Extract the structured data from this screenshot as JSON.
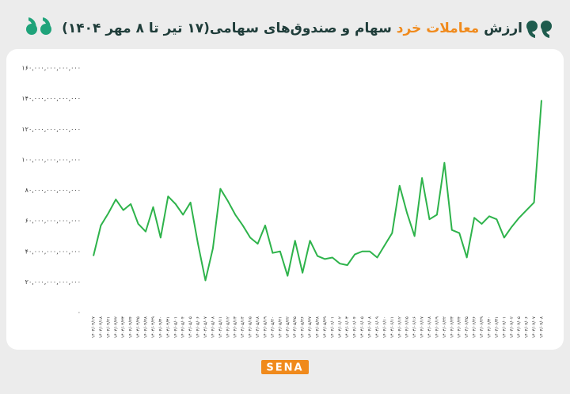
{
  "chart_data": {
    "type": "line",
    "title": [
      "ارزش",
      "معاملات خرد",
      "سهام و صندوق‌های سهامی(۱۷ تیر تا ۸ مهر ۱۴۰۴)"
    ],
    "brand": "SENA",
    "x": [
      "۱۴۰۴/۰۴/۱۷",
      "۱۴۰۴/۰۴/۱۸",
      "۱۴۰۴/۰۴/۲۱",
      "۱۴۰۴/۰۴/۲۲",
      "۱۴۰۴/۰۴/۲۳",
      "۱۴۰۴/۰۴/۲۴",
      "۱۴۰۴/۰۴/۲۵",
      "۱۴۰۴/۰۴/۲۸",
      "۱۴۰۴/۰۴/۲۹",
      "۱۴۰۴/۰۴/۳۰",
      "۱۴۰۴/۰۴/۳۱",
      "۱۴۰۴/۰۵/۰۱",
      "۱۴۰۴/۰۵/۰۴",
      "۱۴۰۴/۰۵/۰۵",
      "۱۴۰۴/۰۵/۰۶",
      "۱۴۰۴/۰۵/۰۷",
      "۱۴۰۴/۰۵/۰۸",
      "۱۴۰۴/۰۵/۱۱",
      "۱۴۰۴/۰۵/۱۲",
      "۱۴۰۴/۰۵/۱۳",
      "۱۴۰۴/۰۵/۱۴",
      "۱۴۰۴/۰۵/۱۵",
      "۱۴۰۴/۰۵/۱۸",
      "۱۴۰۴/۰۵/۱۹",
      "۱۴۰۴/۰۵/۲۰",
      "۱۴۰۴/۰۵/۲۱",
      "۱۴۰۴/۰۵/۲۲",
      "۱۴۰۴/۰۵/۲۵",
      "۱۴۰۴/۰۵/۲۶",
      "۱۴۰۴/۰۵/۲۷",
      "۱۴۰۴/۰۵/۲۸",
      "۱۴۰۴/۰۵/۲۹",
      "۱۴۰۴/۰۶/۰۱",
      "۱۴۰۴/۰۶/۰۲",
      "۱۴۰۴/۰۶/۰۳",
      "۱۴۰۴/۰۶/۰۴",
      "۱۴۰۴/۰۶/۰۵",
      "۱۴۰۴/۰۶/۰۸",
      "۱۴۰۴/۰۶/۰۹",
      "۱۴۰۴/۰۶/۱۰",
      "۱۴۰۴/۰۶/۱۱",
      "۱۴۰۴/۰۶/۱۲",
      "۱۴۰۴/۰۶/۱۵",
      "۱۴۰۴/۰۶/۱۶",
      "۱۴۰۴/۰۶/۱۷",
      "۱۴۰۴/۰۶/۱۸",
      "۱۴۰۴/۰۶/۱۹",
      "۱۴۰۴/۰۶/۲۲",
      "۱۴۰۴/۰۶/۲۳",
      "۱۴۰۴/۰۶/۲۴",
      "۱۴۰۴/۰۶/۲۵",
      "۱۴۰۴/۰۶/۲۶",
      "۱۴۰۴/۰۶/۲۹",
      "۱۴۰۴/۰۶/۳۰",
      "۱۴۰۴/۰۶/۳۱",
      "۱۴۰۴/۰۷/۰۱",
      "۱۴۰۴/۰۷/۰۲",
      "۱۴۰۴/۰۷/۰۵",
      "۱۴۰۴/۰۷/۰۶",
      "۱۴۰۴/۰۷/۰۷",
      "۱۴۰۴/۰۷/۰۸"
    ],
    "series": [
      {
        "color": "#2eb34b",
        "values": [
          37000000000000,
          57000000000000,
          65000000000000,
          74000000000000,
          67000000000000,
          71000000000000,
          58000000000000,
          53000000000000,
          69000000000000,
          49000000000000,
          76000000000000,
          71000000000000,
          64000000000000,
          72000000000000,
          45000000000000,
          21000000000000,
          42000000000000,
          81000000000000,
          73000000000000,
          64000000000000,
          57000000000000,
          49000000000000,
          45000000000000,
          57000000000000,
          39000000000000,
          40000000000000,
          24000000000000,
          47000000000000,
          26000000000000,
          47000000000000,
          37000000000000,
          35000000000000,
          36000000000000,
          32000000000000,
          31000000000000,
          38000000000000,
          40000000000000,
          40000000000000,
          36000000000000,
          44000000000000,
          52000000000000,
          83000000000000,
          65000000000000,
          50000000000000,
          88000000000000,
          61000000000000,
          64000000000000,
          98000000000000,
          54000000000000,
          52000000000000,
          36000000000000,
          62000000000000,
          58000000000000,
          63000000000000,
          61000000000000,
          49000000000000,
          56000000000000,
          62000000000000,
          67000000000000,
          72000000000000,
          139000000000000
        ]
      }
    ],
    "ylim": [
      0,
      160000000000000
    ],
    "yticks": [
      {
        "value": 0,
        "label": "۰"
      },
      {
        "value": 20000000000000,
        "label": "۲۰,۰۰۰,۰۰۰,۰۰۰,۰۰۰"
      },
      {
        "value": 40000000000000,
        "label": "۴۰,۰۰۰,۰۰۰,۰۰۰,۰۰۰"
      },
      {
        "value": 60000000000000,
        "label": "۶۰,۰۰۰,۰۰۰,۰۰۰,۰۰۰"
      },
      {
        "value": 80000000000000,
        "label": "۸۰,۰۰۰,۰۰۰,۰۰۰,۰۰۰"
      },
      {
        "value": 100000000000000,
        "label": "۱۰۰,۰۰۰,۰۰۰,۰۰۰,۰۰۰"
      },
      {
        "value": 120000000000000,
        "label": "۱۲۰,۰۰۰,۰۰۰,۰۰۰,۰۰۰"
      },
      {
        "value": 140000000000000,
        "label": "۱۴۰,۰۰۰,۰۰۰,۰۰۰,۰۰۰"
      },
      {
        "value": 160000000000000,
        "label": "۱۶۰,۰۰۰,۰۰۰,۰۰۰,۰۰۰"
      }
    ],
    "grid": false
  }
}
